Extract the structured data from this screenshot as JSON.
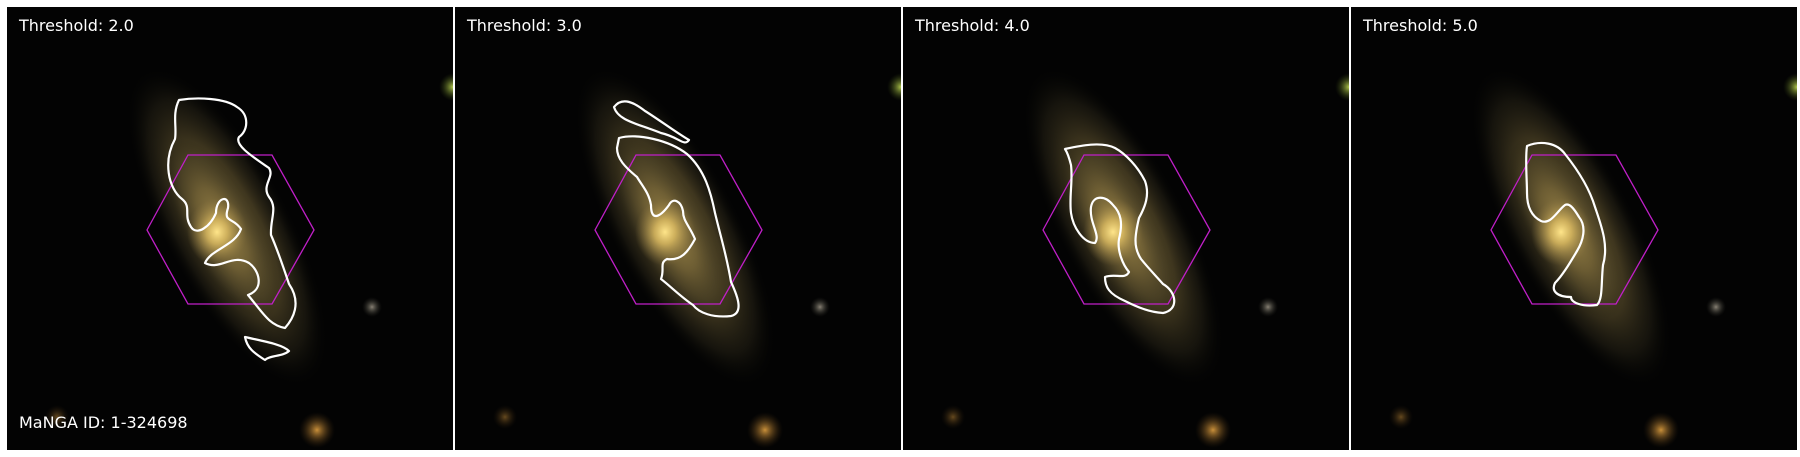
{
  "figure": {
    "manga_label": "MaNGA ID: 1-324698",
    "hexagon_color": "#c01fc8",
    "contour_color": "#ffffff",
    "panels": [
      {
        "threshold_label": "Threshold: 2.0"
      },
      {
        "threshold_label": "Threshold: 3.0"
      },
      {
        "threshold_label": "Threshold: 4.0"
      },
      {
        "threshold_label": "Threshold: 5.0"
      }
    ]
  }
}
